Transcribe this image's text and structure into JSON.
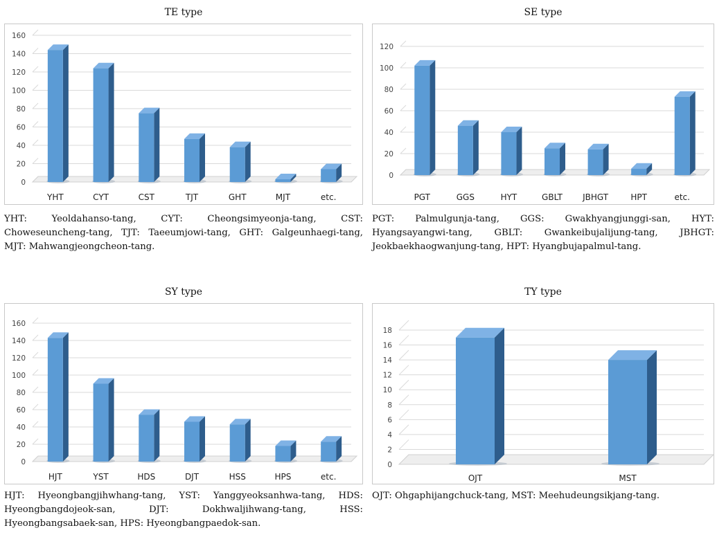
{
  "chart_data": [
    {
      "type": "bar",
      "title": "TE type",
      "categories": [
        "YHT",
        "CYT",
        "CST",
        "TJT",
        "GHT",
        "MJT",
        "etc."
      ],
      "values": [
        144,
        124,
        75,
        47,
        38,
        3,
        14
      ],
      "ylim": [
        0,
        160
      ],
      "yticks": [
        0,
        20,
        40,
        60,
        80,
        100,
        120,
        140,
        160
      ],
      "xlabel": "",
      "ylabel": "",
      "grid": true,
      "caption": "YHT: Yeoldahanso-tang, CYT: Cheongsimyeonja-tang, CST: Choweseuncheng-tang, TJT: Taeeumjowi-tang, GHT: Galgeunhaegi-tang, MJT: Mahwangjeongcheon-tang."
    },
    {
      "type": "bar",
      "title": "SE type",
      "categories": [
        "PGT",
        "GGS",
        "HYT",
        "GBLT",
        "JBHGT",
        "HPT",
        "etc."
      ],
      "values": [
        102,
        46,
        40,
        25,
        24,
        6,
        73
      ],
      "ylim": [
        0,
        120
      ],
      "yticks": [
        0,
        20,
        40,
        60,
        80,
        100,
        120
      ],
      "xlabel": "",
      "ylabel": "",
      "grid": true,
      "caption": "PGT: Palmulgunja-tang, GGS: Gwakhyangjunggi-san, HYT: Hyangsayangwi-tang, GBLT: Gwankeibujalijung-tang, JBHGT: Jeokbaekhaogwanjung-tang, HPT: Hyangbujapalmul-tang."
    },
    {
      "type": "bar",
      "title": "SY type",
      "categories": [
        "HJT",
        "YST",
        "HDS",
        "DJT",
        "HSS",
        "HPS",
        "etc."
      ],
      "values": [
        143,
        90,
        54,
        46,
        43,
        18,
        23
      ],
      "ylim": [
        0,
        160
      ],
      "yticks": [
        0,
        20,
        40,
        60,
        80,
        100,
        120,
        140,
        160
      ],
      "xlabel": "",
      "ylabel": "",
      "grid": true,
      "caption": "HJT: Hyeongbangjihwhang-tang, YST: Yanggyeoksanhwa-tang, HDS: Hyeongbangdojeok-san, DJT: Dokhwaljihwang-tang, HSS: Hyeongbangsabaek-san, HPS: Hyeongbangpaedok-san."
    },
    {
      "type": "bar",
      "title": "TY type",
      "categories": [
        "OJT",
        "MST"
      ],
      "values": [
        17,
        14
      ],
      "ylim": [
        0,
        18
      ],
      "yticks": [
        0,
        2,
        4,
        6,
        8,
        10,
        12,
        14,
        16,
        18
      ],
      "xlabel": "",
      "ylabel": "",
      "grid": true,
      "caption": "OJT: Ohgaphijangchuck-tang, MST: Meehudeungsikjang-tang."
    }
  ],
  "colors": {
    "bar_front": "#5b9bd5",
    "bar_side": "#2e5d8c",
    "bar_top": "#7fb2e5",
    "grid": "#d9d9d9",
    "floor": "#d0d0d0"
  }
}
